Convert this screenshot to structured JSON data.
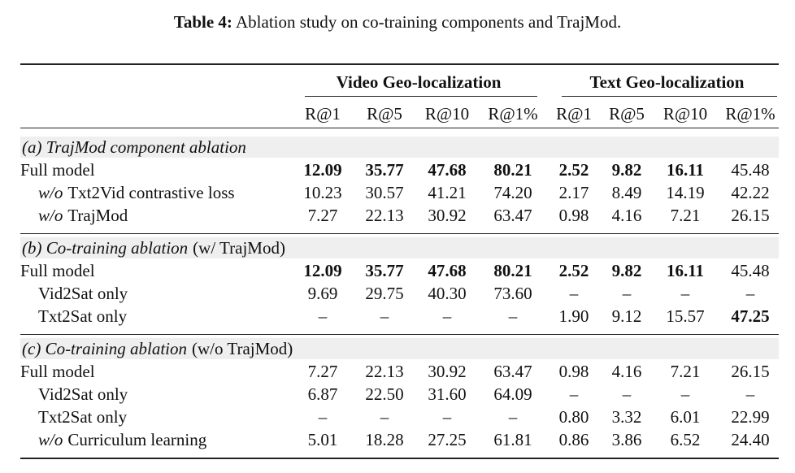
{
  "caption": {
    "label": "Table 4:",
    "text": "Ablation study on co-training components and TrajMod."
  },
  "table": {
    "groups": [
      "Video Geo-localization",
      "Text Geo-localization"
    ],
    "columns": [
      "R@1",
      "R@5",
      "R@10",
      "R@1%",
      "R@1",
      "R@5",
      "R@10",
      "R@1%"
    ],
    "sections": [
      {
        "title": {
          "italic": "(a) TrajMod component ablation"
        },
        "rows": [
          {
            "label": {
              "text": "Full model"
            },
            "indent": false,
            "cells": [
              "12.09",
              "35.77",
              "47.68",
              "80.21",
              "2.52",
              "9.82",
              "16.11",
              "45.48"
            ],
            "bold": [
              0,
              1,
              2,
              3,
              4,
              5,
              6
            ]
          },
          {
            "label": {
              "italic": "w/o",
              "text": "Txt2Vid contrastive loss"
            },
            "indent": true,
            "cells": [
              "10.23",
              "30.57",
              "41.21",
              "74.20",
              "2.17",
              "8.49",
              "14.19",
              "42.22"
            ],
            "bold": []
          },
          {
            "label": {
              "italic": "w/o",
              "text": "TrajMod"
            },
            "indent": true,
            "cells": [
              "7.27",
              "22.13",
              "30.92",
              "63.47",
              "0.98",
              "4.16",
              "7.21",
              "26.15"
            ],
            "bold": []
          }
        ]
      },
      {
        "title": {
          "italic": "(b) Co-training ablation",
          "plain": "(w/ TrajMod)"
        },
        "rows": [
          {
            "label": {
              "text": "Full model"
            },
            "indent": false,
            "cells": [
              "12.09",
              "35.77",
              "47.68",
              "80.21",
              "2.52",
              "9.82",
              "16.11",
              "45.48"
            ],
            "bold": [
              0,
              1,
              2,
              3,
              4,
              5,
              6
            ]
          },
          {
            "label": {
              "text": "Vid2Sat only"
            },
            "indent": true,
            "cells": [
              "9.69",
              "29.75",
              "40.30",
              "73.60",
              "–",
              "–",
              "–",
              "–"
            ],
            "bold": []
          },
          {
            "label": {
              "text": "Txt2Sat only"
            },
            "indent": true,
            "cells": [
              "–",
              "–",
              "–",
              "–",
              "1.90",
              "9.12",
              "15.57",
              "47.25"
            ],
            "bold": [
              7
            ]
          }
        ]
      },
      {
        "title": {
          "italic": "(c) Co-training ablation",
          "plain": "(w/o TrajMod)"
        },
        "rows": [
          {
            "label": {
              "text": "Full model"
            },
            "indent": false,
            "cells": [
              "7.27",
              "22.13",
              "30.92",
              "63.47",
              "0.98",
              "4.16",
              "7.21",
              "26.15"
            ],
            "bold": []
          },
          {
            "label": {
              "text": "Vid2Sat only"
            },
            "indent": true,
            "cells": [
              "6.87",
              "22.50",
              "31.60",
              "64.09",
              "–",
              "–",
              "–",
              "–"
            ],
            "bold": []
          },
          {
            "label": {
              "text": "Txt2Sat only"
            },
            "indent": true,
            "cells": [
              "–",
              "–",
              "–",
              "–",
              "0.80",
              "3.32",
              "6.01",
              "22.99"
            ],
            "bold": []
          },
          {
            "label": {
              "italic": "w/o",
              "text": "Curriculum learning"
            },
            "indent": true,
            "cells": [
              "5.01",
              "18.28",
              "27.25",
              "61.81",
              "0.86",
              "3.86",
              "6.52",
              "24.40"
            ],
            "bold": []
          }
        ]
      }
    ]
  }
}
